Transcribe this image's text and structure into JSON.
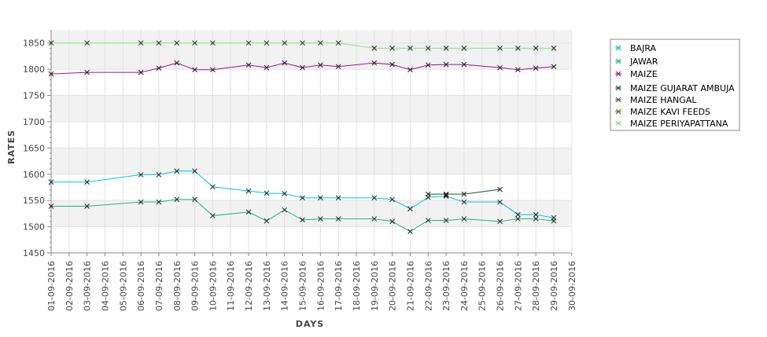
{
  "chart_data": {
    "type": "line",
    "xlabel": "DAYS",
    "ylabel": "RATES",
    "ylim": [
      1450,
      1875
    ],
    "yticks": [
      1450,
      1500,
      1550,
      1600,
      1650,
      1700,
      1750,
      1800,
      1850
    ],
    "categories": [
      "01-09-2016",
      "02-09-2016",
      "03-09-2016",
      "04-09-2016",
      "05-09-2016",
      "06-09-2016",
      "07-09-2016",
      "08-09-2016",
      "09-09-2016",
      "10-09-2016",
      "11-09-2016",
      "12-09-2016",
      "13-09-2016",
      "14-09-2016",
      "15-09-2016",
      "16-09-2016",
      "17-09-2016",
      "18-09-2016",
      "19-09-2016",
      "20-09-2016",
      "21-09-2016",
      "22-09-2016",
      "23-09-2016",
      "24-09-2016",
      "25-09-2016",
      "26-09-2016",
      "27-09-2016",
      "28-09-2016",
      "29-09-2016",
      "30-09-2016"
    ],
    "grid": true,
    "legend_position": "right",
    "series": [
      {
        "name": "BAJRA",
        "color": "#00c8d0",
        "points": [
          [
            "01-09-2016",
            1585
          ],
          [
            "03-09-2016",
            1585
          ],
          [
            "06-09-2016",
            1599
          ],
          [
            "07-09-2016",
            1599
          ],
          [
            "08-09-2016",
            1606
          ],
          [
            "09-09-2016",
            1606
          ],
          [
            "10-09-2016",
            1576
          ],
          [
            "12-09-2016",
            1568
          ],
          [
            "13-09-2016",
            1564
          ],
          [
            "14-09-2016",
            1563
          ],
          [
            "15-09-2016",
            1555
          ],
          [
            "16-09-2016",
            1555
          ],
          [
            "17-09-2016",
            1555
          ],
          [
            "19-09-2016",
            1555
          ],
          [
            "20-09-2016",
            1552
          ],
          [
            "21-09-2016",
            1534
          ],
          [
            "22-09-2016",
            1556
          ],
          [
            "23-09-2016",
            1558
          ],
          [
            "24-09-2016",
            1547
          ],
          [
            "26-09-2016",
            1547
          ],
          [
            "27-09-2016",
            1523
          ],
          [
            "28-09-2016",
            1523
          ],
          [
            "29-09-2016",
            1517
          ]
        ]
      },
      {
        "name": "JAWAR",
        "color": "#20b088",
        "points": [
          [
            "01-09-2016",
            1539
          ],
          [
            "03-09-2016",
            1539
          ],
          [
            "06-09-2016",
            1547
          ],
          [
            "07-09-2016",
            1547
          ],
          [
            "08-09-2016",
            1552
          ],
          [
            "09-09-2016",
            1552
          ],
          [
            "10-09-2016",
            1521
          ],
          [
            "12-09-2016",
            1528
          ],
          [
            "13-09-2016",
            1511
          ],
          [
            "14-09-2016",
            1532
          ],
          [
            "15-09-2016",
            1513
          ],
          [
            "16-09-2016",
            1515
          ],
          [
            "17-09-2016",
            1515
          ],
          [
            "19-09-2016",
            1515
          ],
          [
            "20-09-2016",
            1510
          ],
          [
            "21-09-2016",
            1491
          ],
          [
            "22-09-2016",
            1512
          ],
          [
            "23-09-2016",
            1512
          ],
          [
            "24-09-2016",
            1515
          ],
          [
            "26-09-2016",
            1510
          ],
          [
            "27-09-2016",
            1515
          ],
          [
            "28-09-2016",
            1515
          ],
          [
            "29-09-2016",
            1511
          ]
        ]
      },
      {
        "name": "MAIZE",
        "color": "#a0128a",
        "points": [
          [
            "01-09-2016",
            1791
          ],
          [
            "03-09-2016",
            1794
          ],
          [
            "06-09-2016",
            1794
          ],
          [
            "07-09-2016",
            1802
          ],
          [
            "08-09-2016",
            1812
          ],
          [
            "09-09-2016",
            1799
          ],
          [
            "10-09-2016",
            1799
          ],
          [
            "12-09-2016",
            1808
          ],
          [
            "13-09-2016",
            1803
          ],
          [
            "14-09-2016",
            1812
          ],
          [
            "15-09-2016",
            1803
          ],
          [
            "16-09-2016",
            1808
          ],
          [
            "17-09-2016",
            1805
          ],
          [
            "19-09-2016",
            1812
          ],
          [
            "20-09-2016",
            1809
          ],
          [
            "21-09-2016",
            1799
          ],
          [
            "22-09-2016",
            1808
          ],
          [
            "23-09-2016",
            1809
          ],
          [
            "24-09-2016",
            1809
          ],
          [
            "26-09-2016",
            1803
          ],
          [
            "27-09-2016",
            1799
          ],
          [
            "28-09-2016",
            1802
          ],
          [
            "29-09-2016",
            1805
          ]
        ]
      },
      {
        "name": "MAIZE GUJARAT AMBUJA",
        "color": "#1a5c1a",
        "points": [
          [
            "22-09-2016",
            1562
          ],
          [
            "23-09-2016",
            1562
          ],
          [
            "24-09-2016",
            1562
          ],
          [
            "26-09-2016",
            1571
          ]
        ]
      },
      {
        "name": "MAIZE HANGAL",
        "color": "#555555",
        "points": [
          [
            "23-09-2016",
            1560
          ]
        ]
      },
      {
        "name": "MAIZE KAVI FEEDS",
        "color": "#6a6a1a",
        "points": []
      },
      {
        "name": "MAIZE PERIYAPATTANA",
        "color": "#8ce08c",
        "points": [
          [
            "01-09-2016",
            1850
          ],
          [
            "03-09-2016",
            1850
          ],
          [
            "06-09-2016",
            1850
          ],
          [
            "07-09-2016",
            1850
          ],
          [
            "08-09-2016",
            1850
          ],
          [
            "09-09-2016",
            1850
          ],
          [
            "10-09-2016",
            1850
          ],
          [
            "12-09-2016",
            1850
          ],
          [
            "13-09-2016",
            1850
          ],
          [
            "14-09-2016",
            1850
          ],
          [
            "15-09-2016",
            1850
          ],
          [
            "16-09-2016",
            1850
          ],
          [
            "17-09-2016",
            1850
          ],
          [
            "19-09-2016",
            1840
          ],
          [
            "20-09-2016",
            1840
          ],
          [
            "21-09-2016",
            1840
          ],
          [
            "22-09-2016",
            1840
          ],
          [
            "23-09-2016",
            1840
          ],
          [
            "24-09-2016",
            1840
          ],
          [
            "26-09-2016",
            1840
          ],
          [
            "27-09-2016",
            1840
          ],
          [
            "28-09-2016",
            1840
          ],
          [
            "29-09-2016",
            1840
          ]
        ]
      }
    ]
  }
}
